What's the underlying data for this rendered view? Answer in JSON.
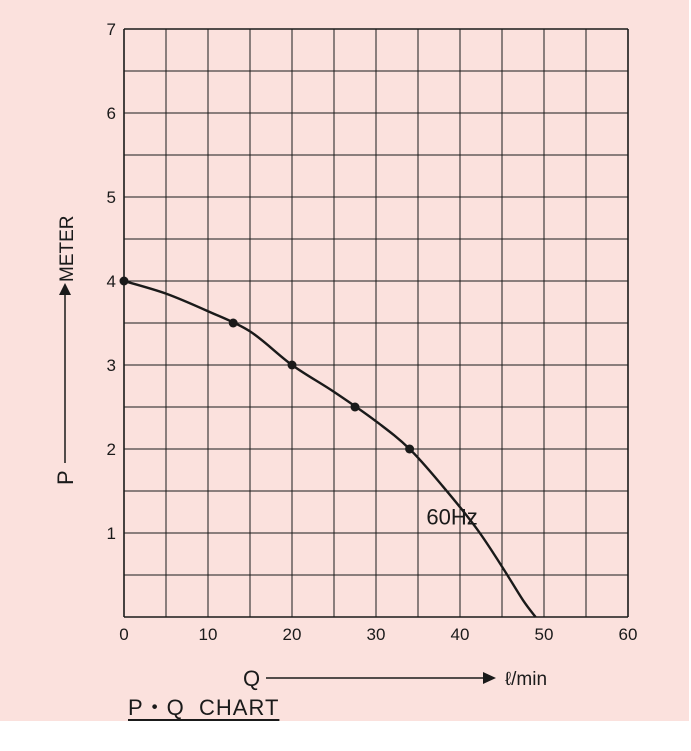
{
  "chart_data": {
    "type": "line",
    "title": "P・Q  CHART",
    "x_axis": {
      "letter": "Q",
      "unit": "ℓ/min",
      "range": [
        0,
        60
      ],
      "ticks": [
        0,
        10,
        20,
        30,
        40,
        50,
        60
      ]
    },
    "y_axis": {
      "letter": "P",
      "unit": "METER",
      "range": [
        0,
        7
      ],
      "ticks": [
        1,
        2,
        3,
        4,
        5,
        6,
        7
      ]
    },
    "grid": true,
    "series": [
      {
        "name": "60Hz",
        "curve": [
          [
            0,
            4.0
          ],
          [
            5,
            3.85
          ],
          [
            10,
            3.64
          ],
          [
            15,
            3.4
          ],
          [
            20,
            3.0
          ],
          [
            25,
            2.68
          ],
          [
            30,
            2.33
          ],
          [
            34,
            2.0
          ],
          [
            38,
            1.55
          ],
          [
            42,
            1.05
          ],
          [
            45,
            0.6
          ],
          [
            47.5,
            0.2
          ],
          [
            49,
            0.0
          ]
        ],
        "markers": [
          [
            0,
            4.0
          ],
          [
            13,
            3.5
          ],
          [
            20,
            3.0
          ],
          [
            27.5,
            2.5
          ],
          [
            34,
            2.0
          ]
        ]
      }
    ],
    "annotations": [
      {
        "text": "60Hz",
        "x": 36,
        "y": 1.1
      }
    ],
    "colors": {
      "background": "#fbe1dd",
      "line": "#1a1a1a",
      "grid": "#1a1a1a"
    }
  }
}
